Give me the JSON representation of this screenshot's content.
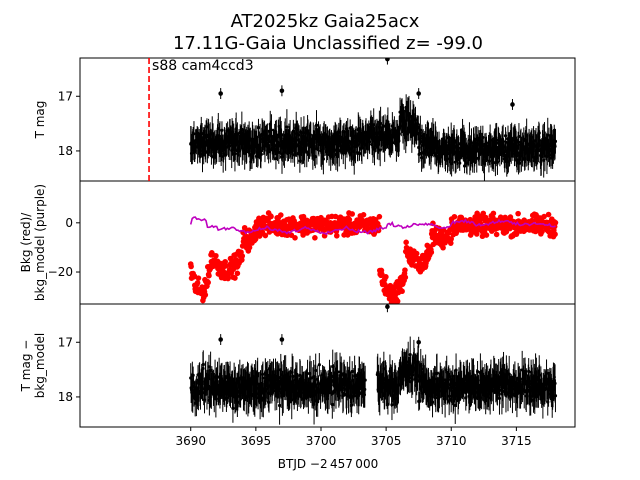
{
  "chart_data": {
    "type": "scatter",
    "title_line1": "AT2025kz  Gaia25acx",
    "title_line2": "17.11G-Gaia Unclassified z= -99.0",
    "xlabel": "BTJD −2 457 000",
    "x_ticks": [
      "3690",
      "3695",
      "3700",
      "3705",
      "3710",
      "3715"
    ],
    "xlim": [
      3681.5,
      3719.5
    ],
    "annotation": "s88 cam4ccd3",
    "annotation_x": 3686.8,
    "colors": {
      "lightcurve": "#000000",
      "bkg": "#ff0000",
      "bkg_model": "#bf00bf",
      "sector_line": "#ff0000"
    },
    "panels": [
      {
        "name": "T mag",
        "ylabel_lines": [
          "T mag"
        ],
        "ylim": [
          18.55,
          16.3
        ],
        "inverted": true,
        "y_ticks": [
          "17",
          "18"
        ],
        "series": [
          {
            "name": "T mag",
            "style": "errorbar",
            "color": "#000000",
            "x_start": 3690.0,
            "x_end": 3718.0,
            "baseline": 17.85,
            "scatter": 0.22,
            "features": [
              {
                "x": [
                  3703.0,
                  3706.5
                ],
                "shift": -0.12
              },
              {
                "x": [
                  3706.0,
                  3707.5
                ],
                "shift": -0.35
              },
              {
                "x": [
                  3709.0,
                  3718.0
                ],
                "shift": 0.12
              }
            ],
            "outliers": [
              {
                "x": 3705.1,
                "y": 16.32
              },
              {
                "x": 3697.0,
                "y": 16.9
              },
              {
                "x": 3692.3,
                "y": 16.95
              },
              {
                "x": 3707.5,
                "y": 16.95
              },
              {
                "x": 3714.7,
                "y": 17.15
              }
            ]
          }
        ]
      },
      {
        "name": "Bkg",
        "ylabel_lines": [
          "Bkg (red)/",
          "bkg_model (purple)"
        ],
        "ylim": [
          -33,
          17
        ],
        "inverted": false,
        "y_ticks": [
          "0",
          "−20"
        ],
        "series": [
          {
            "name": "Bkg",
            "style": "dots",
            "color": "#ff0000",
            "x_start": 3690.0,
            "x_end": 3718.0,
            "baseline": -1,
            "scatter": 3.5,
            "features": [
              {
                "x": [
                  3690.0,
                  3691.5
                ],
                "shift": -27
              },
              {
                "x": [
                  3691.5,
                  3694.0
                ],
                "shift": -18
              },
              {
                "x": [
                  3694.0,
                  3695.0
                ],
                "shift": -6
              },
              {
                "x": [
                  3704.5,
                  3706.5
                ],
                "shift": -28
              },
              {
                "x": [
                  3706.5,
                  3708.5
                ],
                "shift": -15
              },
              {
                "x": [
                  3708.5,
                  3710.0
                ],
                "shift": -5
              }
            ]
          },
          {
            "name": "bkg_model",
            "style": "line",
            "color": "#bf00bf",
            "x_start": 3690.0,
            "x_end": 3718.0,
            "baseline": -1,
            "scatter": 0.6
          }
        ]
      },
      {
        "name": "T mag − bkg_model",
        "ylabel_lines": [
          "T mag −",
          "bkg_model"
        ],
        "ylim": [
          18.55,
          16.3
        ],
        "inverted": true,
        "y_ticks": [
          "17",
          "18"
        ],
        "series": [
          {
            "name": "T mag − bkg_model",
            "style": "errorbar",
            "color": "#000000",
            "x_start": 3690.0,
            "x_end": 3718.0,
            "baseline": 17.8,
            "scatter": 0.25,
            "features": [
              {
                "x": [
                  3706.0,
                  3707.5
                ],
                "shift": -0.3
              }
            ],
            "outliers": [
              {
                "x": 3705.1,
                "y": 16.35
              },
              {
                "x": 3697.0,
                "y": 16.95
              },
              {
                "x": 3692.3,
                "y": 16.95
              },
              {
                "x": 3707.5,
                "y": 17.0
              }
            ]
          }
        ]
      }
    ]
  }
}
